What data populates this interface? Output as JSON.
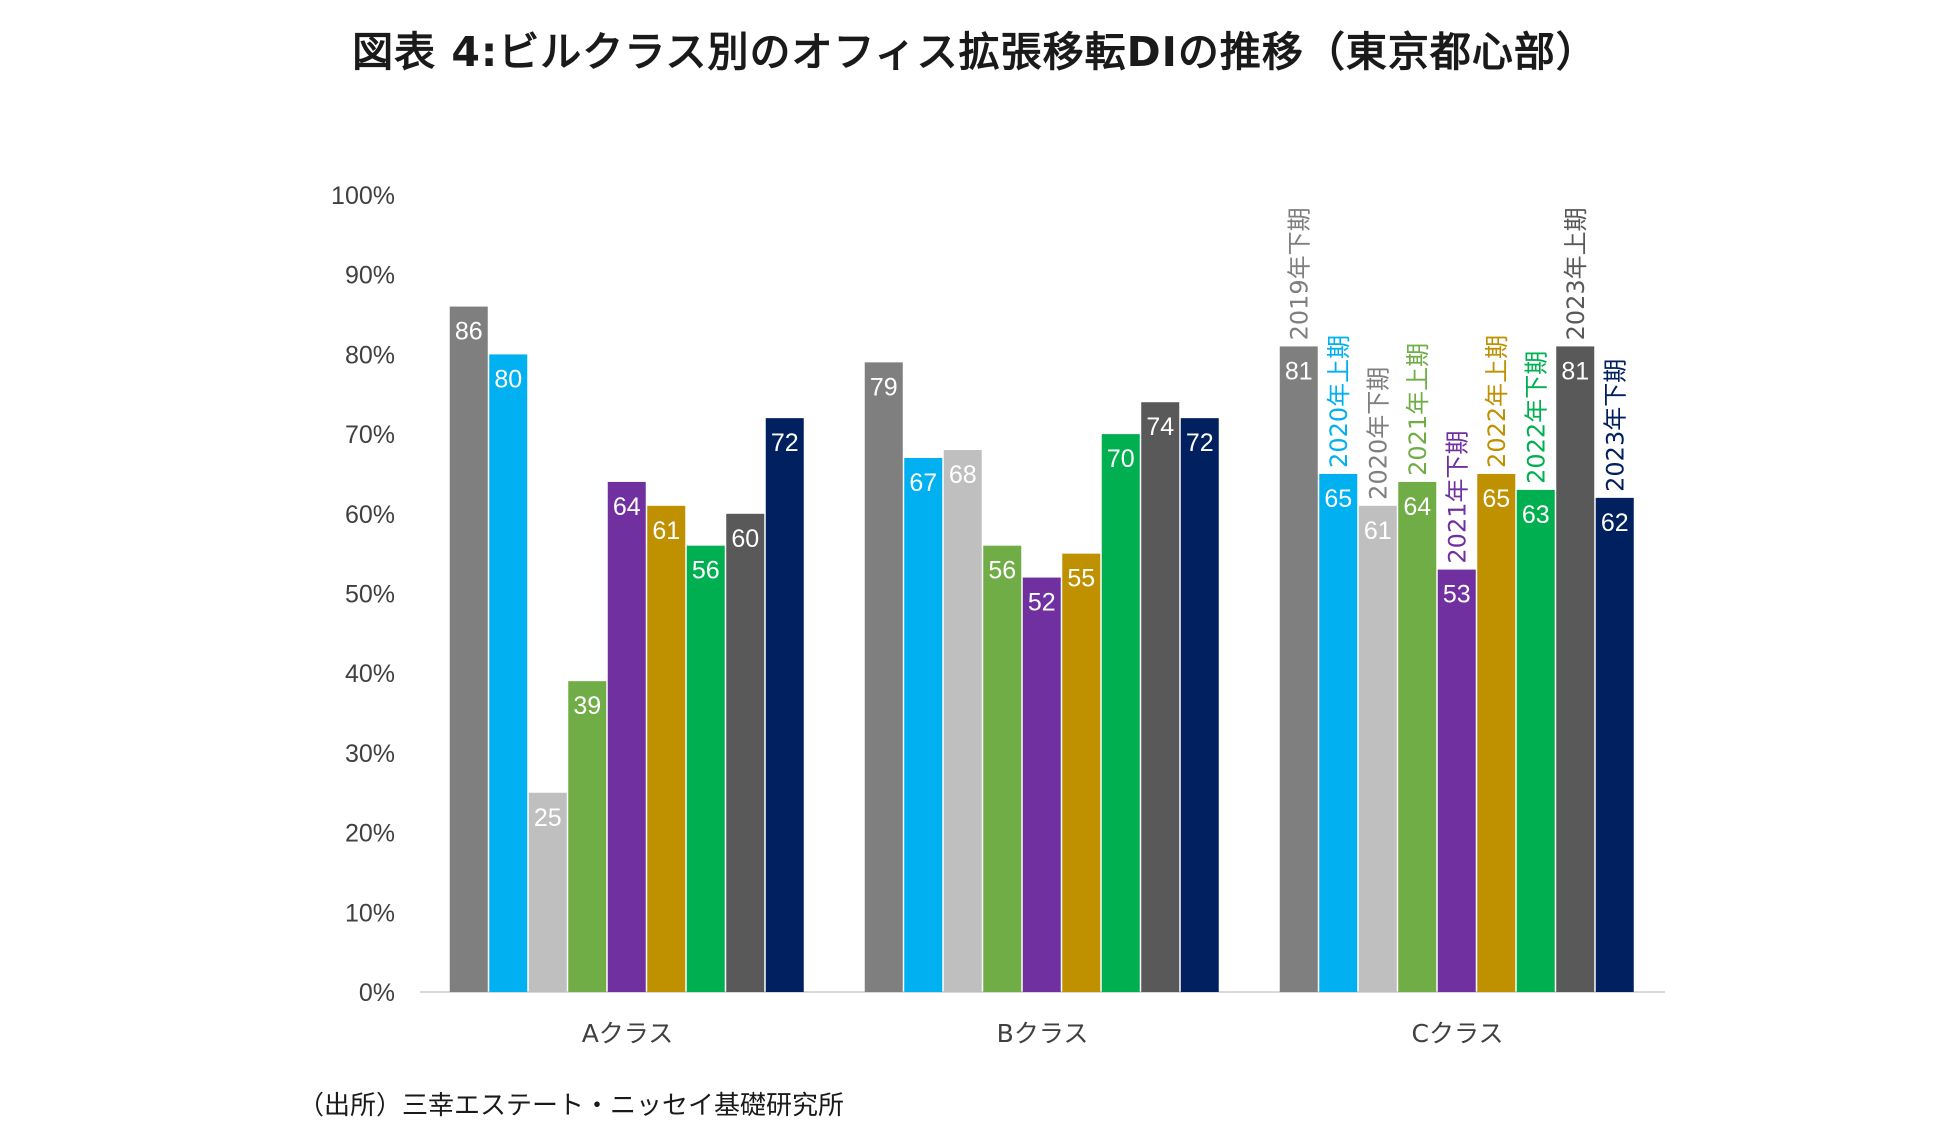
{
  "title": "図表 4:ビルクラス別のオフィス拡張移転DIの推移（東京都心部）",
  "source": "（出所）三幸エステート・ニッセイ基礎研究所",
  "chart_data": {
    "type": "bar",
    "title": "図表 4:ビルクラス別のオフィス拡張移転DIの推移（東京都心部）",
    "xlabel": "",
    "ylabel": "",
    "ylim": [
      0,
      100
    ],
    "yticks": [
      "0%",
      "10%",
      "20%",
      "30%",
      "40%",
      "50%",
      "60%",
      "70%",
      "80%",
      "90%",
      "100%"
    ],
    "categories": [
      "Aクラス",
      "Bクラス",
      "Cクラス"
    ],
    "legend_position": "inline-above-Cクラス-bars",
    "series": [
      {
        "name": "2019年下期",
        "color": "#7f7f7f",
        "values": [
          86,
          79,
          81
        ]
      },
      {
        "name": "2020年上期",
        "color": "#00b0f0",
        "values": [
          80,
          67,
          65
        ]
      },
      {
        "name": "2020年下期",
        "color": "#bfbfbf",
        "label_color": "#7f7f7f",
        "values": [
          25,
          68,
          61
        ]
      },
      {
        "name": "2021年上期",
        "color": "#70ad47",
        "values": [
          39,
          56,
          64
        ]
      },
      {
        "name": "2021年下期",
        "color": "#7030a0",
        "values": [
          64,
          52,
          53
        ]
      },
      {
        "name": "2022年上期",
        "color": "#bf9000",
        "values": [
          61,
          55,
          65
        ]
      },
      {
        "name": "2022年下期",
        "color": "#00b050",
        "values": [
          56,
          70,
          63
        ]
      },
      {
        "name": "2023年上期",
        "color": "#595959",
        "values": [
          60,
          74,
          81
        ]
      },
      {
        "name": "2023年下期",
        "color": "#002060",
        "values": [
          72,
          72,
          62
        ]
      }
    ]
  }
}
